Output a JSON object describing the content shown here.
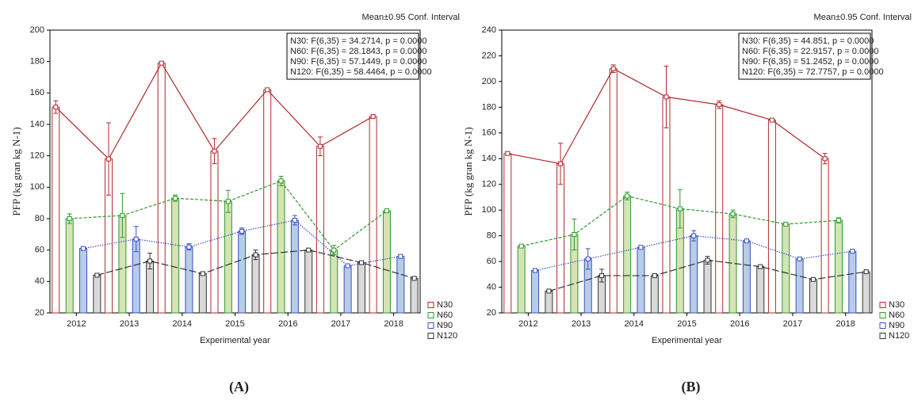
{
  "chart_data": [
    {
      "type": "bar_line",
      "panel_label": "(A)",
      "annotation": "Mean±0.95 Conf. Interval",
      "ylabel": "PFP (kg gran kg N-1)",
      "xlabel": "Experimental year",
      "categories": [
        "2012",
        "2013",
        "2014",
        "2015",
        "2016",
        "2017",
        "2018"
      ],
      "ylim": [
        20,
        200
      ],
      "yticks": [
        20,
        40,
        60,
        80,
        100,
        120,
        140,
        160,
        180,
        200
      ],
      "stats": [
        "N30:   F(6,35) = 34.2714, p = 0.0000",
        "N60:   F(6,35) = 28.1843, p = 0.0000",
        "N90:   F(6,35) = 57.1449, p = 0.0000",
        "N120:   F(6,35) = 58.4464, p = 0.0000"
      ],
      "series": [
        {
          "name": "N30",
          "color": "#b02a2a",
          "fill": "#ffffff",
          "line_style": "solid",
          "values": [
            151,
            118,
            179,
            123,
            162,
            126,
            145
          ],
          "errors": [
            4,
            23,
            1,
            8,
            1,
            6,
            1
          ]
        },
        {
          "name": "N60",
          "color": "#2f9a2f",
          "fill": "#d5e3b5",
          "line_style": "dashed",
          "values": [
            80,
            82,
            93,
            91,
            104,
            60,
            85
          ],
          "errors": [
            3,
            14,
            2,
            7,
            3,
            3,
            1
          ]
        },
        {
          "name": "N90",
          "color": "#3a4fc0",
          "fill": "#b7cde6",
          "line_style": "dotted",
          "values": [
            61,
            67,
            62,
            72,
            79,
            50,
            56
          ],
          "errors": [
            1,
            8,
            2,
            2,
            3,
            1,
            1
          ]
        },
        {
          "name": "N120",
          "color": "#333333",
          "fill": "#d9d9d9",
          "line_style": "longdash",
          "values": [
            44,
            53,
            45,
            57,
            60,
            52,
            42
          ],
          "errors": [
            1,
            5,
            1,
            3,
            1,
            1,
            1
          ]
        }
      ]
    },
    {
      "type": "bar_line",
      "panel_label": "(B)",
      "annotation": "Mean±0.95 Conf. Interval",
      "ylabel": "PFP (kg gran kg N-1)",
      "xlabel": "Experimental year",
      "categories": [
        "2012",
        "2013",
        "2014",
        "2015",
        "2016",
        "2017",
        "2018"
      ],
      "ylim": [
        20,
        240
      ],
      "yticks": [
        20,
        40,
        60,
        80,
        100,
        120,
        140,
        160,
        180,
        200,
        220,
        240
      ],
      "stats": [
        "N30:   F(6,35) = 44.851, p = 0.0000",
        "N60:   F(6,35) = 22.9157, p = 0.0000",
        "N90:   F(6,35) = 51.2452, p = 0.0000",
        "N120:   F(6,35) = 72.7757, p = 0.0000"
      ],
      "series": [
        {
          "name": "N30",
          "color": "#b02a2a",
          "fill": "#ffffff",
          "line_style": "solid",
          "values": [
            144,
            136,
            210,
            188,
            182,
            170,
            140
          ],
          "errors": [
            1,
            16,
            3,
            24,
            3,
            1,
            4
          ]
        },
        {
          "name": "N60",
          "color": "#2f9a2f",
          "fill": "#d5e3b5",
          "line_style": "dashed",
          "values": [
            72,
            81,
            111,
            101,
            97,
            89,
            92
          ],
          "errors": [
            1,
            12,
            3,
            15,
            3,
            1,
            2
          ]
        },
        {
          "name": "N90",
          "color": "#3a4fc0",
          "fill": "#b7cde6",
          "line_style": "dotted",
          "values": [
            53,
            62,
            71,
            80,
            76,
            62,
            68
          ],
          "errors": [
            1,
            8,
            1,
            4,
            1,
            1,
            1
          ]
        },
        {
          "name": "N120",
          "color": "#333333",
          "fill": "#d9d9d9",
          "line_style": "longdash",
          "values": [
            37,
            49,
            49,
            61,
            56,
            46,
            52
          ],
          "errors": [
            1,
            5,
            1,
            3,
            1,
            1,
            1
          ]
        }
      ]
    }
  ]
}
